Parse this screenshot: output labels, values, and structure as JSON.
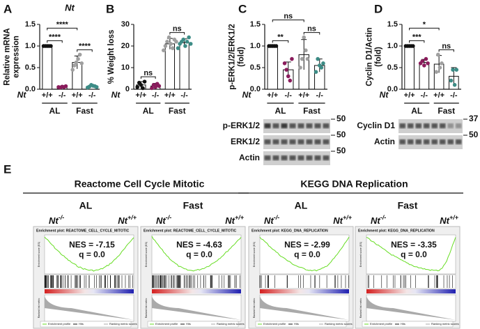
{
  "chart_data": [
    {
      "type": "bar",
      "panel": "A",
      "title": "Nt",
      "y_label": [
        "Relative mRNA",
        "expression"
      ],
      "categories": [
        "+/+",
        "-/-",
        "+/+",
        "-/-"
      ],
      "row_label": "Nt",
      "groups": [
        "AL",
        "Fast"
      ],
      "values": [
        1.0,
        0.05,
        0.62,
        0.07
      ],
      "errors": [
        0.01,
        0.01,
        0.15,
        0.03
      ],
      "points": [
        [
          1,
          1,
          1,
          1,
          1
        ],
        [
          0.05,
          0.04,
          0.06,
          0.05,
          0.07
        ],
        [
          0.45,
          0.55,
          0.62,
          0.7,
          0.8,
          0.6
        ],
        [
          0.04,
          0.06,
          0.1,
          0.08,
          0.07,
          0.05
        ]
      ],
      "point_colors": [
        "#111111",
        "#8a1c5c",
        "#a0a0a0",
        "#3d8c86"
      ],
      "ylim": [
        0,
        1.5
      ],
      "yticks": [
        {
          "value": 0,
          "label": "0.0"
        },
        0.5,
        {
          "value": 1,
          "label": "1.0"
        },
        1.5
      ],
      "comparisons": [
        {
          "pair": [
            0,
            1
          ],
          "label": "****"
        },
        {
          "pair": [
            2,
            3
          ],
          "label": "****"
        },
        {
          "pair": [
            0,
            2
          ],
          "label": "****"
        }
      ]
    },
    {
      "type": "bar",
      "panel": "B",
      "y_label": [
        "% Weight loss"
      ],
      "categories": [
        "+/+",
        "-/-",
        "+/+",
        "-/-"
      ],
      "row_label": "Nt",
      "groups": [
        "AL",
        "Fast"
      ],
      "values": [
        2,
        1.5,
        21,
        21.5
      ],
      "errors": [
        1.5,
        1.2,
        2.5,
        1.8
      ],
      "points": [
        [
          1,
          3,
          2,
          0.5,
          3.5
        ],
        [
          0.5,
          2,
          1,
          2.5,
          1.5
        ],
        [
          18,
          20,
          22,
          24,
          21,
          19,
          23,
          22
        ],
        [
          19,
          21,
          22,
          23,
          20,
          22,
          24,
          21
        ]
      ],
      "point_colors": [
        "#111111",
        "#8a1c5c",
        "#a0a0a0",
        "#3d8c86"
      ],
      "ylim": [
        0,
        30
      ],
      "yticks": [
        0,
        10,
        20,
        30
      ],
      "comparisons": [
        {
          "pair": [
            0,
            1
          ],
          "label": "ns"
        },
        {
          "pair": [
            2,
            3
          ],
          "label": "ns"
        }
      ]
    },
    {
      "type": "bar",
      "panel": "C",
      "y_label": [
        "p-ERK1/2/ERK1/2",
        "(fold)"
      ],
      "categories": [
        "+/+",
        "-/-",
        "+/+",
        "-/-"
      ],
      "row_label": "Nt",
      "groups": [
        "AL",
        "Fast"
      ],
      "values": [
        1.0,
        0.45,
        0.8,
        0.55
      ],
      "errors": [
        0.01,
        0.18,
        0.35,
        0.15
      ],
      "points": [
        [
          1,
          1,
          1,
          1,
          1
        ],
        [
          0.6,
          0.45,
          0.3,
          0.2,
          0.7
        ],
        [
          0.5,
          0.7,
          1.2,
          0.9,
          0.7
        ],
        [
          0.4,
          0.7,
          0.55,
          0.5,
          0.6
        ]
      ],
      "point_colors": [
        "#111111",
        "#8a1c5c",
        "#a0a0a0",
        "#3d8c86"
      ],
      "ylim": [
        0,
        1.5
      ],
      "yticks": [
        {
          "value": 0,
          "label": "0.0"
        },
        0.5,
        {
          "value": 1,
          "label": "1.0"
        },
        1.5
      ],
      "comparisons": [
        {
          "pair": [
            0,
            1
          ],
          "label": "**"
        },
        {
          "pair": [
            2,
            3
          ],
          "label": "ns"
        },
        {
          "pair": [
            0,
            2
          ],
          "label": "ns"
        }
      ]
    },
    {
      "type": "bar",
      "panel": "D",
      "y_label": [
        "Cyclin D1/Actin",
        "(fold)"
      ],
      "categories": [
        "+/+",
        "-/-",
        "+/+",
        "-/-"
      ],
      "row_label": "Nt",
      "groups": [
        "AL",
        "Fast"
      ],
      "values": [
        1.0,
        0.62,
        0.58,
        0.3
      ],
      "errors": [
        0.01,
        0.07,
        0.2,
        0.2
      ],
      "points": [
        [
          1,
          1,
          1,
          1,
          1
        ],
        [
          0.6,
          0.65,
          0.55,
          0.7,
          0.6
        ],
        [
          0.4,
          0.8,
          0.5,
          0.6
        ],
        [
          0.2,
          0.45,
          0.1,
          0.45
        ]
      ],
      "point_colors": [
        "#111111",
        "#8a1c5c",
        "#a0a0a0",
        "#3d8c86"
      ],
      "ylim": [
        0,
        1.5
      ],
      "yticks": [
        {
          "value": 0,
          "label": "0.0"
        },
        0.5,
        {
          "value": 1,
          "label": "1.0"
        },
        1.5
      ],
      "comparisons": [
        {
          "pair": [
            0,
            1
          ],
          "label": "***"
        },
        {
          "pair": [
            2,
            3
          ],
          "label": "ns"
        },
        {
          "pair": [
            0,
            2
          ],
          "label": "*"
        }
      ]
    }
  ],
  "blots": [
    {
      "panel": "C",
      "rows": [
        {
          "label": "p-ERK1/2",
          "marker": "50"
        },
        {
          "label": "ERK1/2",
          "marker": "50"
        },
        {
          "label": "Actin",
          "marker": "50"
        }
      ]
    },
    {
      "panel": "D",
      "rows": [
        {
          "label": "Cyclin D1",
          "marker": "37"
        },
        {
          "label": "Actin",
          "marker": "50"
        }
      ]
    }
  ],
  "gsea": {
    "panel": "E",
    "axis_labels": {
      "es": "Enrichment score (ES)",
      "metric": "Ranked list metric",
      "rank": "Rank in Ordered Dataset",
      "legend": [
        "Enrichment profile",
        "Hits",
        "Ranking metric scores"
      ]
    },
    "sets": [
      {
        "title": "Reactome Cell Cycle Mitotic",
        "plots": [
          {
            "condition": "AL",
            "left": "Nt",
            "left_sup": "-/-",
            "right": "Nt",
            "right_sup": "+/+",
            "plot_title": "Enrichment plot: REACTOME_CELL_CYCLE_MITOTIC",
            "nes": "NES = -7.15",
            "q": "q = 0.0"
          },
          {
            "condition": "Fast",
            "left": "Nt",
            "left_sup": "-/-",
            "right": "Nt",
            "right_sup": "+/+",
            "plot_title": "Enrichment plot: REACTOME_CELL_CYCLE_MITOTIC",
            "nes": "NES = -4.63",
            "q": "q = 0.0"
          }
        ]
      },
      {
        "title": "KEGG DNA Replication",
        "plots": [
          {
            "condition": "AL",
            "left": "Nt",
            "left_sup": "-/-",
            "right": "Nt",
            "right_sup": "+/+",
            "plot_title": "Enrichment plot: KEGG_DNA_REPLICATION",
            "nes": "NES = -2.99",
            "q": "q = 0.0"
          },
          {
            "condition": "Fast",
            "left": "Nt",
            "left_sup": "-/-",
            "right": "Nt",
            "right_sup": "+/+",
            "plot_title": "Enrichment plot: KEGG_DNA_REPLICATION",
            "nes": "NES = -3.35",
            "q": "q = 0.0"
          }
        ]
      }
    ]
  }
}
